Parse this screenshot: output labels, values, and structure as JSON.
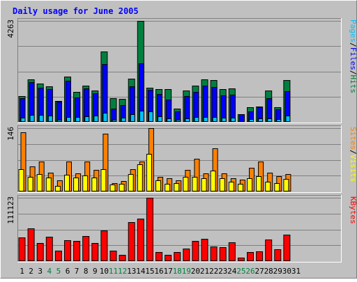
{
  "chart_data": {
    "type": "bar",
    "title": "Daily usage for June 2005",
    "x": [
      "1",
      "2",
      "3",
      "4",
      "5",
      "6",
      "7",
      "8",
      "9",
      "10",
      "11",
      "12",
      "13",
      "14",
      "15",
      "16",
      "17",
      "18",
      "19",
      "20",
      "21",
      "22",
      "23",
      "24",
      "25",
      "26",
      "27",
      "28",
      "29",
      "30",
      "31"
    ],
    "weekend_days": [
      "4",
      "5",
      "11",
      "12",
      "18",
      "19",
      "25",
      "26"
    ],
    "panels": [
      {
        "name": "pages-files-hits",
        "ymax_label": "4263",
        "ylim": [
          0,
          4263
        ],
        "legend": [
          "Pages",
          "/",
          "Files",
          "/",
          "Hits"
        ],
        "series": [
          {
            "name": "Hits",
            "color": "#008040",
            "values": [
              1080,
              1790,
              1630,
              1510,
              890,
              1900,
              1260,
              1520,
              1330,
              2960,
              990,
              960,
              1820,
              4263,
              1430,
              1390,
              1380,
              560,
              1310,
              1540,
              1790,
              1760,
              1390,
              1420,
              330,
              620,
              660,
              1330,
              630,
              1760,
              0
            ]
          },
          {
            "name": "Files",
            "color": "#0000ff",
            "values": [
              1010,
              1690,
              1450,
              1380,
              860,
              1730,
              1040,
              1410,
              1210,
              2450,
              560,
              720,
              1500,
              2480,
              1350,
              1190,
              930,
              450,
              1100,
              1270,
              1520,
              1480,
              1110,
              1160,
              330,
              430,
              610,
              990,
              520,
              1280,
              0
            ]
          },
          {
            "name": "Pages",
            "color": "#00c0ff",
            "values": [
              180,
              290,
              280,
              260,
              90,
              220,
              200,
              230,
              250,
              370,
              80,
              170,
              310,
              470,
              450,
              230,
              150,
              100,
              150,
              210,
              210,
              210,
              190,
              170,
              30,
              130,
              140,
              140,
              110,
              250,
              0
            ]
          }
        ]
      },
      {
        "name": "sites-visits",
        "ymax_label": "146",
        "ylim": [
          0,
          146
        ],
        "legend": [
          "Sites",
          "/",
          "Visits"
        ],
        "series": [
          {
            "name": "Visits",
            "color": "#ff8000",
            "values": [
              137,
              58,
              69,
              43,
              25,
              69,
              41,
              69,
              50,
              133,
              20,
              24,
              52,
              69,
              146,
              33,
              31,
              26,
              50,
              76,
              42,
              99,
              42,
              31,
              27,
              54,
              69,
              44,
              35,
              40,
              0
            ]
          },
          {
            "name": "Sites",
            "color": "#ffff00",
            "values": [
              52,
              33,
              40,
              32,
              13,
              39,
              32,
              37,
              32,
              52,
              16,
              18,
              40,
              62,
              86,
              25,
              18,
              20,
              33,
              33,
              31,
              48,
              30,
              22,
              18,
              31,
              36,
              23,
              20,
              29,
              0
            ]
          }
        ]
      },
      {
        "name": "kbytes",
        "ymax_label": "111123",
        "ylim": [
          0,
          111123
        ],
        "legend": [
          "KBytes"
        ],
        "series": [
          {
            "name": "KBytes",
            "color": "#ff0000",
            "values": [
              41000,
              57800,
              31200,
              42300,
              18500,
              36800,
              35700,
              44500,
              31600,
              53500,
              17800,
              11400,
              68600,
              74400,
              111123,
              16100,
              11100,
              16400,
              21600,
              35400,
              38900,
              25300,
              24600,
              32700,
              6100,
              15600,
              16700,
              37400,
              20300,
              46200,
              0
            ]
          }
        ]
      }
    ]
  }
}
